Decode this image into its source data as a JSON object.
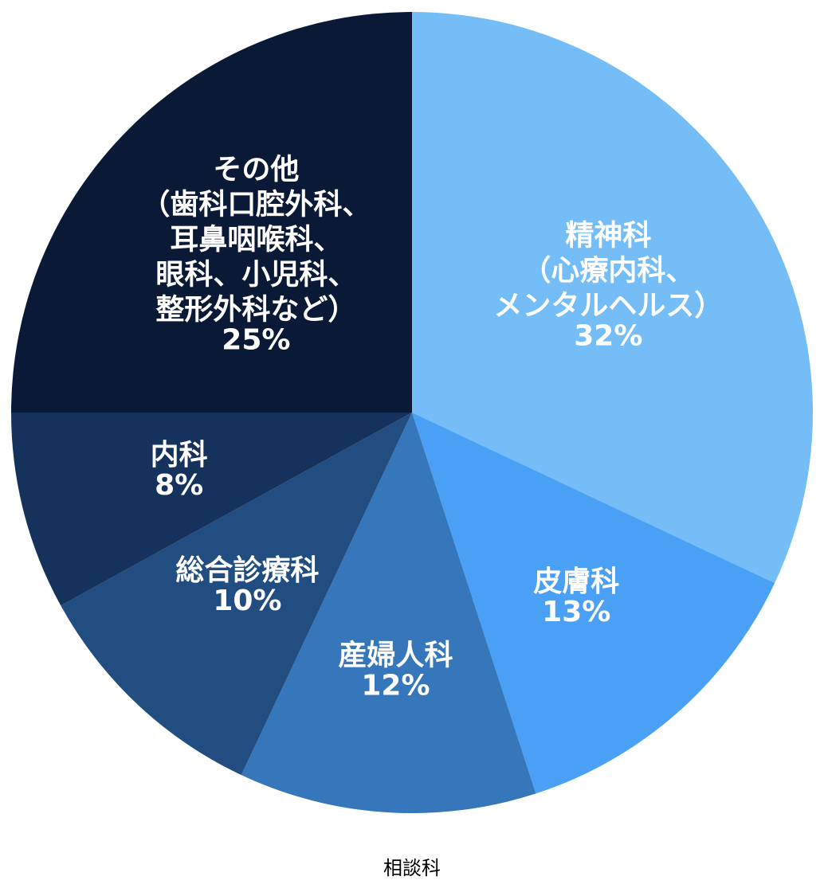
{
  "chart_data": {
    "type": "pie",
    "title": "",
    "caption": "相談科",
    "start_angle_deg": 0,
    "direction": "clockwise",
    "legend": "none",
    "slices": [
      {
        "label": "精神科（心療内科、メンタルヘルス）",
        "label_lines": [
          "精神科",
          "（心療内科、",
          "メンタルヘルス）"
        ],
        "value": 32,
        "value_label": "32%",
        "color": "#74BDF7"
      },
      {
        "label": "皮膚科",
        "label_lines": [
          "皮膚科"
        ],
        "value": 13,
        "value_label": "13%",
        "color": "#4AA0F5"
      },
      {
        "label": "産婦人科",
        "label_lines": [
          "産婦人科"
        ],
        "value": 12,
        "value_label": "12%",
        "color": "#3676BB"
      },
      {
        "label": "総合診療科",
        "label_lines": [
          "総合診療科"
        ],
        "value": 10,
        "value_label": "10%",
        "color": "#224D80"
      },
      {
        "label": "内科",
        "label_lines": [
          "内科"
        ],
        "value": 8,
        "value_label": "8%",
        "color": "#15325D"
      },
      {
        "label": "その他（歯科口腔外科、耳鼻咽喉科、眼科、小児科、整形外科など）",
        "label_lines": [
          "その他",
          "（歯科口腔外科、",
          "耳鼻咽喉科、",
          "眼科、小児科、",
          "整形外科など）"
        ],
        "value": 25,
        "value_label": "25%",
        "color": "#091936"
      }
    ]
  }
}
